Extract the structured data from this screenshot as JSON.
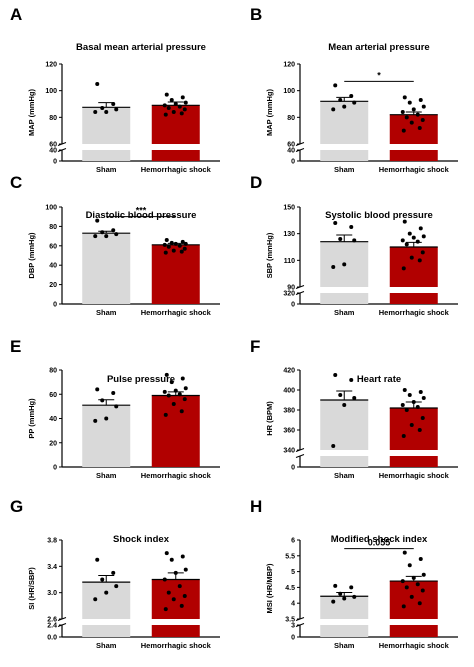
{
  "colors": {
    "sham": "#d9d9d9",
    "shock": "#b10000",
    "point": "#000000",
    "axis": "#000000"
  },
  "chart_data": [
    {
      "letter": "A",
      "type": "bar",
      "title": "Basal mean arterial pressure",
      "ylabel": "MAP (mmHg)",
      "categories": [
        "Sham",
        "Hemorrhagic shock"
      ],
      "ticks_upper": [
        60,
        80,
        100,
        120
      ],
      "ticks_lower": [
        0,
        40
      ],
      "range_upper": [
        60,
        120
      ],
      "range_lower": [
        0,
        40
      ],
      "values": [
        87.5,
        89
      ],
      "errors": [
        3.5,
        2.5
      ],
      "points": [
        [
          105,
          90,
          87,
          86,
          84,
          84
        ],
        [
          97,
          95,
          93,
          91,
          90,
          89,
          88,
          87,
          86,
          84,
          83,
          82
        ]
      ],
      "significance": null
    },
    {
      "letter": "B",
      "type": "bar",
      "title": "Mean arterial pressure",
      "ylabel": "MAP (mmHg)",
      "categories": [
        "Sham",
        "Hemorrhagic shock"
      ],
      "ticks_upper": [
        60,
        80,
        100,
        120
      ],
      "ticks_lower": [
        0,
        40
      ],
      "range_upper": [
        60,
        120
      ],
      "range_lower": [
        0,
        40
      ],
      "values": [
        92,
        82
      ],
      "errors": [
        3,
        2
      ],
      "points": [
        [
          104,
          96,
          93,
          91,
          88,
          86
        ],
        [
          95,
          93,
          91,
          88,
          86,
          84,
          82,
          80,
          78,
          76,
          72,
          70
        ]
      ],
      "significance": "*"
    },
    {
      "letter": "C",
      "type": "bar",
      "title": "Diastolic blood pressure",
      "ylabel": "DBP (mmHg)",
      "categories": [
        "Sham",
        "Hemorrhagic shock"
      ],
      "ticks_upper": [
        0,
        20,
        40,
        60,
        80,
        100
      ],
      "ticks_lower": [],
      "range_upper": [
        0,
        100
      ],
      "range_lower": null,
      "values": [
        73,
        61
      ],
      "errors": [
        2,
        1.5
      ],
      "points": [
        [
          86,
          76,
          74,
          72,
          70,
          70
        ],
        [
          66,
          64,
          63,
          62,
          62,
          61,
          60,
          59,
          57,
          55,
          54,
          53
        ]
      ],
      "significance": "***"
    },
    {
      "letter": "D",
      "type": "bar",
      "title": "Systolic blood pressure",
      "ylabel": "SBP (mmHg)",
      "categories": [
        "Sham",
        "Hemorrhagic shock"
      ],
      "ticks_upper": [
        90,
        110,
        130,
        150
      ],
      "ticks_lower": [
        0,
        320
      ],
      "range_upper": [
        90,
        150
      ],
      "range_lower": [
        0,
        320
      ],
      "values": [
        124,
        120
      ],
      "errors": [
        5,
        3.5
      ],
      "points": [
        [
          138,
          135,
          126,
          125,
          107,
          105
        ],
        [
          139,
          134,
          130,
          128,
          127,
          125,
          124,
          122,
          116,
          112,
          110,
          104
        ]
      ],
      "significance": null
    },
    {
      "letter": "E",
      "type": "bar",
      "title": "Pulse pressure",
      "ylabel": "PP (mmHg)",
      "categories": [
        "Sham",
        "Hemorrhagic shock"
      ],
      "ticks_upper": [
        0,
        20,
        40,
        60,
        80
      ],
      "ticks_lower": [],
      "range_upper": [
        0,
        80
      ],
      "range_lower": null,
      "values": [
        51,
        59
      ],
      "errors": [
        4.5,
        3
      ],
      "points": [
        [
          64,
          61,
          55,
          50,
          40,
          38
        ],
        [
          76,
          73,
          70,
          65,
          63,
          62,
          60,
          59,
          56,
          52,
          46,
          43
        ]
      ],
      "significance": null
    },
    {
      "letter": "F",
      "type": "bar",
      "title": "Heart rate",
      "ylabel": "HR (BPM)",
      "categories": [
        "Sham",
        "Hemorrhagic shock"
      ],
      "ticks_upper": [
        340,
        360,
        380,
        400,
        420
      ],
      "ticks_lower": [
        0
      ],
      "range_upper": [
        340,
        420
      ],
      "range_lower": [
        0,
        20
      ],
      "values": [
        390,
        382
      ],
      "errors": [
        9,
        6
      ],
      "points": [
        [
          415,
          410,
          395,
          392,
          385,
          344
        ],
        [
          400,
          398,
          395,
          392,
          388,
          385,
          383,
          380,
          372,
          365,
          360,
          354
        ]
      ],
      "significance": null
    },
    {
      "letter": "G",
      "type": "bar",
      "title": "Shock index",
      "ylabel": "SI (HR/SBP)",
      "categories": [
        "Sham",
        "Hemorrhagic shock"
      ],
      "ticks_upper": [
        2.6,
        3.0,
        3.4,
        3.8
      ],
      "ticks_lower": [
        0.0,
        2.4
      ],
      "range_upper": [
        2.6,
        3.8
      ],
      "range_lower": [
        0,
        2.4
      ],
      "values": [
        3.16,
        3.2
      ],
      "errors": [
        0.1,
        0.1
      ],
      "points": [
        [
          3.5,
          3.3,
          3.2,
          3.1,
          3.0,
          2.9
        ],
        [
          3.6,
          3.55,
          3.5,
          3.35,
          3.3,
          3.2,
          3.1,
          3.0,
          2.95,
          2.9,
          2.8,
          2.75
        ]
      ],
      "significance": null
    },
    {
      "letter": "H",
      "type": "bar",
      "title": "Modified shock index",
      "ylabel": "MSI (HR/MBP)",
      "categories": [
        "Sham",
        "Hemorrhagic shock"
      ],
      "ticks_upper": [
        3.5,
        4.0,
        4.5,
        5.0,
        5.5,
        6.0
      ],
      "ticks_lower": [
        0,
        3
      ],
      "range_upper": [
        3.5,
        6.0
      ],
      "range_lower": [
        0,
        3
      ],
      "values": [
        4.22,
        4.7
      ],
      "errors": [
        0.12,
        0.15
      ],
      "points": [
        [
          4.55,
          4.5,
          4.3,
          4.2,
          4.15,
          4.05
        ],
        [
          5.6,
          5.4,
          5.2,
          4.9,
          4.8,
          4.7,
          4.6,
          4.5,
          4.4,
          4.2,
          4.0,
          3.9
        ]
      ],
      "significance": "0.055"
    }
  ]
}
